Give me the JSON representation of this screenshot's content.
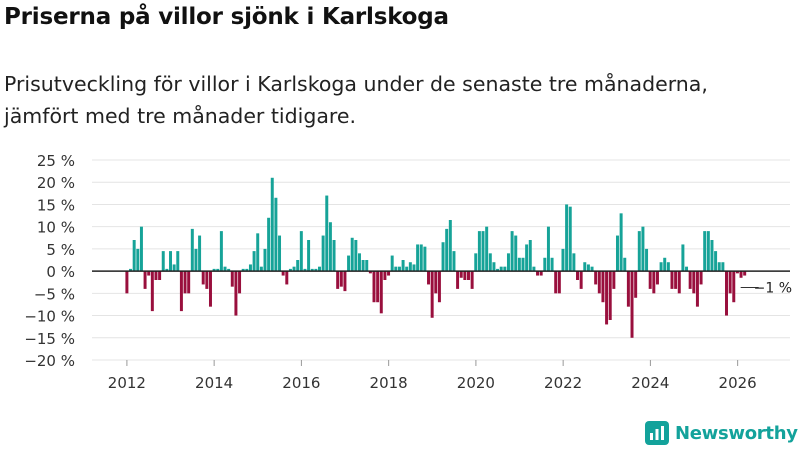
{
  "title": "Priserna på villor sjönk i Karlskoga",
  "subtitle": "Prisutveckling för villor i Karlskoga under de senaste tre månaderna, jämfört med tre månader tidigare.",
  "brand": {
    "name": "Newsworthy",
    "logo_icon": "bar-chart-logo-icon"
  },
  "colors": {
    "positive": "#16a398",
    "negative": "#990f3d",
    "grid": "#e4e4e4",
    "zero_line": "#222222"
  },
  "chart_data": {
    "type": "bar",
    "title": "Priserna på villor sjönk i Karlskoga",
    "xlabel": "",
    "ylabel": "",
    "x_start": 2012.0,
    "x_step": 0.0833,
    "xlim": [
      2011.2,
      2027.2
    ],
    "ylim": [
      -20,
      25
    ],
    "grid": true,
    "y_ticks": [
      25,
      20,
      15,
      10,
      5,
      0,
      -5,
      -10,
      -15,
      -20
    ],
    "y_tick_labels": [
      "25 %",
      "20 %",
      "15 %",
      "10 %",
      "5 %",
      "0 %",
      "−5 %",
      "−10 %",
      "−15 %",
      "−20 %"
    ],
    "x_ticks": [
      2012,
      2014,
      2016,
      2018,
      2020,
      2022,
      2024,
      2026
    ],
    "x_tick_labels": [
      "2012",
      "2014",
      "2016",
      "2018",
      "2020",
      "2022",
      "2024",
      "2026"
    ],
    "values": [
      -5,
      0.5,
      7,
      5,
      10,
      -4,
      -1,
      -9,
      -2,
      -2,
      4.5,
      0.5,
      4.5,
      1.5,
      4.5,
      -9,
      -5,
      -5,
      9.5,
      5,
      8,
      -3,
      -4,
      -8,
      0.5,
      0.5,
      9,
      1,
      0.5,
      -3.5,
      -10,
      -5,
      0.5,
      0.5,
      1.5,
      4.5,
      8.5,
      1,
      5,
      12,
      21,
      16.5,
      8,
      -1,
      -3,
      0.5,
      1,
      2.5,
      9,
      0.5,
      7,
      0.5,
      0.5,
      1,
      8,
      17,
      11,
      7,
      -4,
      -3.5,
      -4.5,
      3.5,
      7.5,
      7,
      4,
      2.5,
      2.5,
      -0.5,
      -7,
      -7,
      -9.5,
      -2,
      -1,
      3.5,
      1,
      1,
      2.5,
      1,
      2,
      1.5,
      6,
      6,
      5.5,
      -3,
      -10.5,
      -5,
      -7,
      6.5,
      9.5,
      11.5,
      4.5,
      -4,
      -1.5,
      -2,
      -2,
      -4,
      4,
      9,
      9,
      10,
      4,
      2,
      0.5,
      1,
      1,
      4,
      9,
      8,
      3,
      3,
      6,
      7,
      1,
      -1,
      -1,
      3,
      10,
      3,
      -5,
      -5,
      5,
      15,
      14.5,
      4,
      -2,
      -4,
      2,
      1.5,
      1,
      -3,
      -5,
      -7,
      -12,
      -11,
      -4,
      8,
      13,
      3,
      -8,
      -15,
      -6,
      9,
      10,
      5,
      -4,
      -5,
      -3,
      2,
      3,
      2,
      -4,
      -4,
      -5,
      6,
      1,
      -4,
      -5,
      -8,
      -3,
      9,
      9,
      7,
      4.5,
      2,
      2,
      -10,
      -5,
      -7,
      -0.5,
      -1.5,
      -1
    ],
    "annotation": {
      "label": "−1 %",
      "value": -1
    }
  }
}
